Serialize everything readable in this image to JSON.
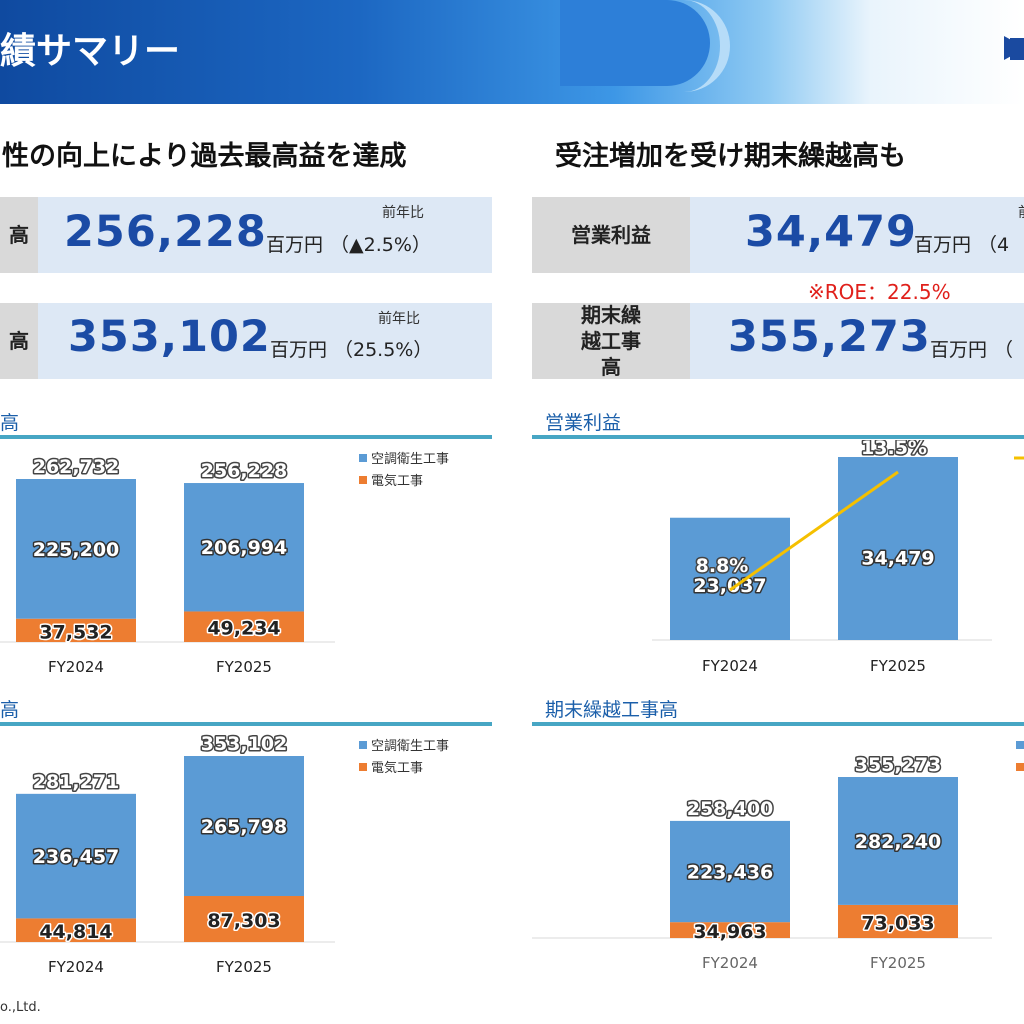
{
  "header": {
    "title": "績サマリー"
  },
  "subheads": {
    "left": "性の向上により過去最高益を達成",
    "right": "受注増加を受け期末繰越高も"
  },
  "kpis": {
    "k1": {
      "label": "高",
      "value": "256,228",
      "unit": "百万円",
      "change": "（▲2.5%）",
      "yoy_label": "前年比"
    },
    "k2": {
      "label": "高",
      "value": "353,102",
      "unit": "百万円",
      "change": "（25.5%）",
      "yoy_label": "前年比"
    },
    "k3": {
      "label": "営業利益",
      "value": "34,479",
      "unit": "百万円",
      "change": "（4",
      "yoy_label": "前"
    },
    "k4": {
      "label": "期末繰越工事高",
      "value": "355,273",
      "unit": "百万円",
      "change": "（"
    },
    "roe": "※ROE：22.5%"
  },
  "sections": {
    "top_left": "高",
    "top_right": "営業利益",
    "bottom_left": "高",
    "bottom_right": "期末繰越工事高"
  },
  "footer": {
    "text": "o.,Ltd."
  },
  "colors": {
    "blue": "#5b9bd5",
    "orange": "#ed7d31",
    "line": "#f5c000",
    "brand": "#1b4ba5"
  },
  "chart_data": [
    {
      "type": "bar",
      "categories": [
        "FY2024",
        "FY2025"
      ],
      "series": [
        {
          "name": "空調衛生工事",
          "values": [
            225200,
            206994
          ]
        },
        {
          "name": "電気工事",
          "values": [
            37532,
            49234
          ]
        }
      ],
      "totals": [
        262732,
        256228
      ],
      "legend": [
        "空調衛生工事",
        "電気工事"
      ]
    },
    {
      "type": "bar",
      "categories": [
        "FY2024",
        "FY2025"
      ],
      "series": [
        {
          "name": "",
          "values": [
            23037,
            34479
          ]
        }
      ],
      "line_series": {
        "name": "",
        "values": [
          8.8,
          13.5
        ],
        "labels": [
          "8.8%",
          "13.5%"
        ]
      }
    },
    {
      "type": "bar",
      "categories": [
        "FY2024",
        "FY2025"
      ],
      "series": [
        {
          "name": "空調衛生工事",
          "values": [
            236457,
            265798
          ]
        },
        {
          "name": "電気工事",
          "values": [
            44814,
            87303
          ]
        }
      ],
      "totals": [
        281271,
        353102
      ],
      "legend": [
        "空調衛生工事",
        "電気工事"
      ]
    },
    {
      "type": "bar",
      "categories": [
        "FY2024",
        "FY2025"
      ],
      "series": [
        {
          "name": "",
          "values": [
            223436,
            282240
          ]
        },
        {
          "name": "",
          "values": [
            34963,
            73033
          ]
        }
      ],
      "totals": [
        258400,
        355273
      ]
    }
  ]
}
